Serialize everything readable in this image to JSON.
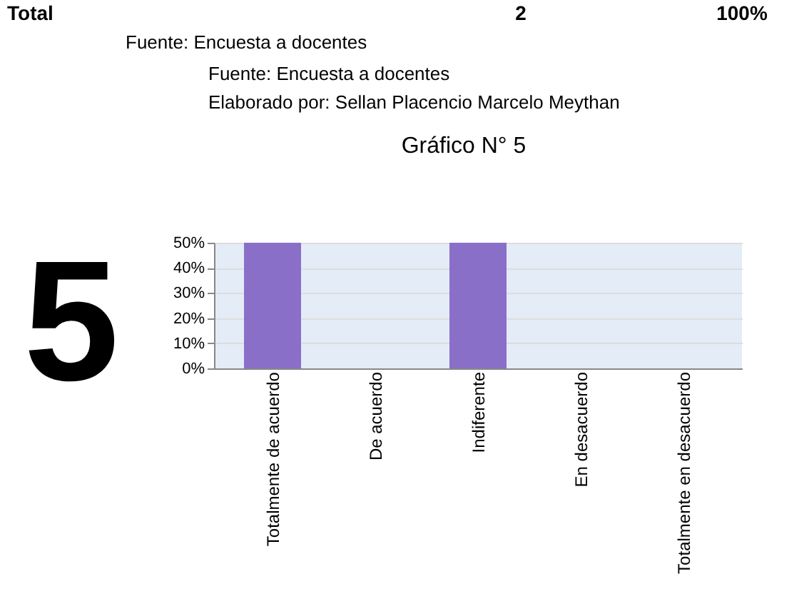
{
  "chart_data": {
    "type": "bar",
    "title": "Gráfico N° 5",
    "categories": [
      "Totalmente de acuerdo",
      "De acuerdo",
      "Indiferente",
      "En desacuerdo",
      "Totalmente en desacuerdo"
    ],
    "series": [
      {
        "color": "#8a6fc9",
        "values": [
          50,
          0,
          50,
          0,
          0
        ]
      }
    ],
    "ylim": [
      0,
      50
    ],
    "yticks": [
      {
        "value": 0,
        "label": "0%"
      },
      {
        "value": 10,
        "label": "10%"
      },
      {
        "value": 20,
        "label": "20%"
      },
      {
        "value": 30,
        "label": "30%"
      },
      {
        "value": 40,
        "label": "40%"
      },
      {
        "value": 50,
        "label": "50%"
      }
    ],
    "grid": "y",
    "annotations": [
      "Total",
      "2",
      "100%",
      "Fuente: Encuesta a docentes",
      "Fuente: Encuesta a docentes",
      "Elaborado por: Sellan Placencio Marcelo Meythan",
      "5"
    ]
  }
}
